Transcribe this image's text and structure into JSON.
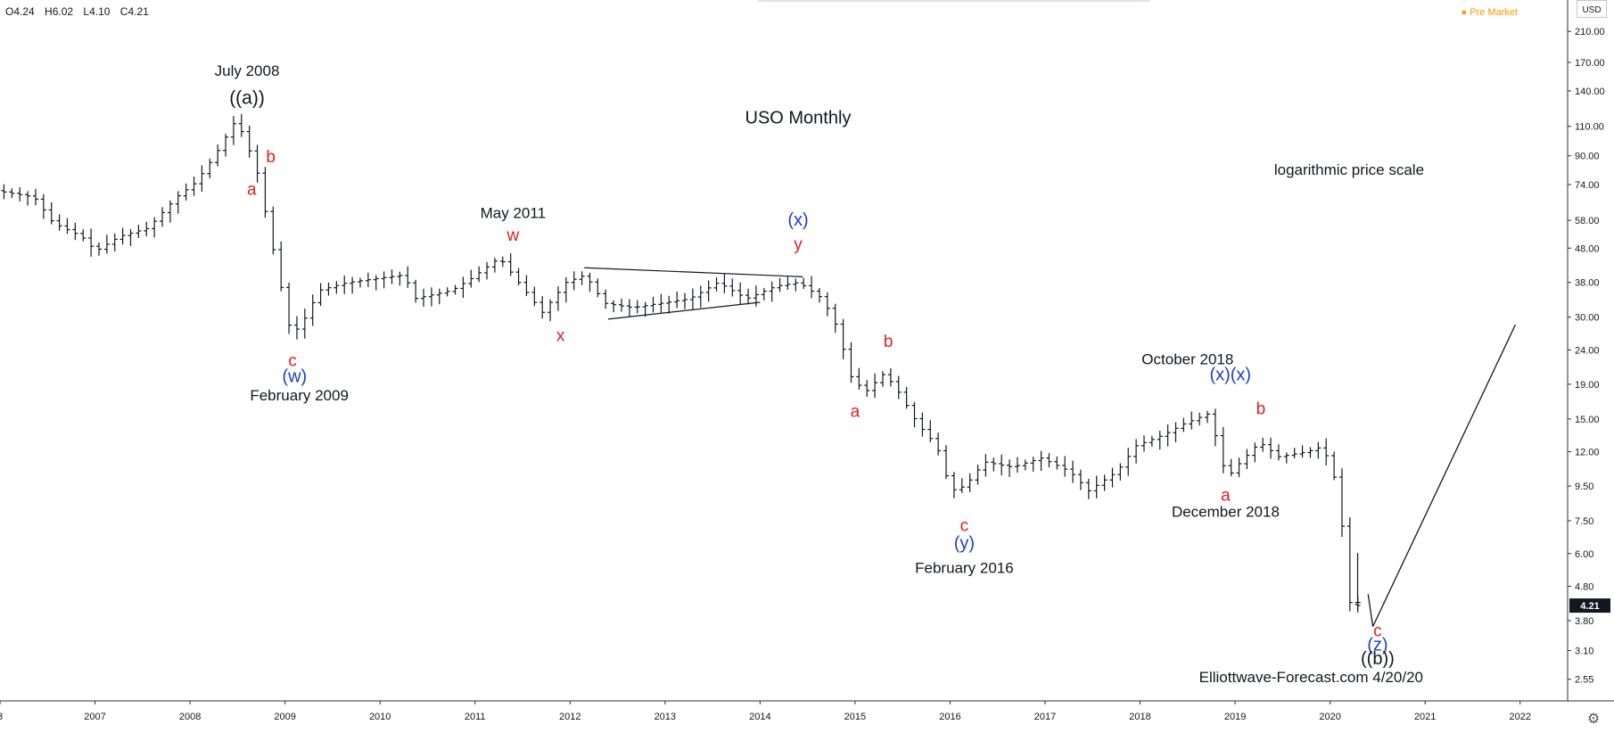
{
  "header": {
    "open": "O4.24",
    "high": "H6.02",
    "low": "L4.10",
    "close": "C4.21",
    "pre_market": "Pre Market",
    "currency": "USD",
    "last_price": "4.21"
  },
  "chart_data": {
    "type": "ohlc",
    "title": "USO Monthly",
    "yscale": "log",
    "ylim": [
      2.2,
      260
    ],
    "xlim": [
      2006.0,
      2022.5
    ],
    "x_ticks": [
      "3",
      "2007",
      "2008",
      "2009",
      "2010",
      "2011",
      "2012",
      "2013",
      "2014",
      "2015",
      "2016",
      "2017",
      "2018",
      "2019",
      "2020",
      "2021",
      "2022"
    ],
    "x_tick_values": [
      2006.0,
      2007.0,
      2008.0,
      2009.0,
      2010.0,
      2011.0,
      2012.0,
      2013.0,
      2014.0,
      2015.0,
      2016.0,
      2017.0,
      2018.0,
      2019.0,
      2020.0,
      2021.0,
      2022.0
    ],
    "y_ticks": [
      "2.55",
      "3.10",
      "3.80",
      "4.80",
      "6.00",
      "7.50",
      "9.50",
      "12.00",
      "15.00",
      "19.00",
      "24.00",
      "30.00",
      "38.00",
      "48.00",
      "58.00",
      "74.00",
      "90.00",
      "110.00",
      "140.00",
      "170.00",
      "210.00"
    ],
    "y_tick_values": [
      2.55,
      3.1,
      3.8,
      4.8,
      6.0,
      7.5,
      9.5,
      12.0,
      15.0,
      19.0,
      24.0,
      30.0,
      38.0,
      48.0,
      58.0,
      74.0,
      90.0,
      110.0,
      140.0,
      170.0,
      210.0
    ],
    "grid": false,
    "anchors": [
      [
        2006.0,
        71
      ],
      [
        2006.4,
        68
      ],
      [
        2006.6,
        57
      ],
      [
        2006.9,
        52
      ],
      [
        2007.05,
        47
      ],
      [
        2007.3,
        52
      ],
      [
        2007.6,
        55
      ],
      [
        2007.9,
        68
      ],
      [
        2008.1,
        75
      ],
      [
        2008.3,
        90
      ],
      [
        2008.5,
        112
      ],
      [
        2008.6,
        105
      ],
      [
        2008.75,
        80
      ],
      [
        2008.9,
        50
      ],
      [
        2009.1,
        27
      ],
      [
        2009.2,
        28
      ],
      [
        2009.4,
        36
      ],
      [
        2009.7,
        38
      ],
      [
        2010.0,
        39
      ],
      [
        2010.3,
        40
      ],
      [
        2010.4,
        34
      ],
      [
        2010.8,
        36
      ],
      [
        2011.0,
        39
      ],
      [
        2011.3,
        45
      ],
      [
        2011.5,
        38
      ],
      [
        2011.75,
        31
      ],
      [
        2012.0,
        38
      ],
      [
        2012.2,
        40
      ],
      [
        2012.4,
        33
      ],
      [
        2012.7,
        32
      ],
      [
        2013.0,
        33
      ],
      [
        2013.3,
        34
      ],
      [
        2013.6,
        38
      ],
      [
        2013.9,
        34
      ],
      [
        2014.2,
        37
      ],
      [
        2014.45,
        38
      ],
      [
        2014.7,
        34
      ],
      [
        2014.85,
        28
      ],
      [
        2015.0,
        20
      ],
      [
        2015.15,
        18
      ],
      [
        2015.35,
        20.5
      ],
      [
        2015.5,
        18
      ],
      [
        2015.7,
        14.5
      ],
      [
        2015.9,
        12.5
      ],
      [
        2016.05,
        9.2
      ],
      [
        2016.2,
        9.5
      ],
      [
        2016.4,
        11.2
      ],
      [
        2016.7,
        10.8
      ],
      [
        2017.0,
        11.5
      ],
      [
        2017.3,
        10.5
      ],
      [
        2017.5,
        9.2
      ],
      [
        2017.8,
        10.5
      ],
      [
        2018.0,
        12.5
      ],
      [
        2018.3,
        13.5
      ],
      [
        2018.5,
        14.5
      ],
      [
        2018.75,
        15.5
      ],
      [
        2018.85,
        13
      ],
      [
        2018.95,
        10
      ],
      [
        2019.1,
        11.2
      ],
      [
        2019.3,
        12.8
      ],
      [
        2019.5,
        11.6
      ],
      [
        2019.8,
        12.0
      ],
      [
        2019.95,
        12.4
      ],
      [
        2020.05,
        11.0
      ],
      [
        2020.15,
        8.5
      ],
      [
        2020.22,
        4.3
      ],
      [
        2020.29,
        4.3
      ]
    ],
    "projection": [
      [
        2020.45,
        3.65
      ],
      [
        2021.95,
        28.5
      ]
    ],
    "triangle": [
      [
        [
          2012.15,
          42
        ],
        [
          2014.45,
          39.5
        ]
      ],
      [
        [
          2012.4,
          29.6
        ],
        [
          2014.0,
          33.2
        ]
      ]
    ],
    "last_bar": {
      "x": 2020.29,
      "o": 4.24,
      "h": 6.02,
      "l": 4.1,
      "c": 4.21
    },
    "annotations": [
      {
        "text": "July 2008",
        "x": 2008.6,
        "y": 155,
        "color": "#131722",
        "size": 17
      },
      {
        "text": "((a))",
        "x": 2008.6,
        "y": 128,
        "color": "#131722",
        "size": 21
      },
      {
        "text": "b",
        "x": 2008.85,
        "y": 86,
        "color": "#e51e1e",
        "size": 19
      },
      {
        "text": "a",
        "x": 2008.65,
        "y": 69,
        "color": "#e51e1e",
        "size": 19
      },
      {
        "text": "c",
        "x": 2009.08,
        "y": 21.5,
        "color": "#e51e1e",
        "size": 19
      },
      {
        "text": "(w)",
        "x": 2009.1,
        "y": 19.3,
        "color": "#1c3fc8",
        "size": 20
      },
      {
        "text": "February 2009",
        "x": 2009.15,
        "y": 17.0,
        "color": "#131722",
        "size": 17
      },
      {
        "text": "USO Monthly",
        "x": 2014.4,
        "y": 112,
        "color": "#131722",
        "size": 20
      },
      {
        "text": "May 2011",
        "x": 2011.4,
        "y": 59,
        "color": "#131722",
        "size": 17
      },
      {
        "text": "w",
        "x": 2011.4,
        "y": 50.5,
        "color": "#e51e1e",
        "size": 19
      },
      {
        "text": "x",
        "x": 2011.9,
        "y": 25.5,
        "color": "#e51e1e",
        "size": 19
      },
      {
        "text": "(x)",
        "x": 2014.4,
        "y": 56,
        "color": "#1c3fc8",
        "size": 20
      },
      {
        "text": "y",
        "x": 2014.4,
        "y": 47.5,
        "color": "#e51e1e",
        "size": 19
      },
      {
        "text": "logarithmic price scale",
        "x": 2020.2,
        "y": 79,
        "color": "#131722",
        "size": 17
      },
      {
        "text": "b",
        "x": 2015.35,
        "y": 24.5,
        "color": "#e51e1e",
        "size": 19
      },
      {
        "text": "a",
        "x": 2015.0,
        "y": 15.2,
        "color": "#e51e1e",
        "size": 19
      },
      {
        "text": "c",
        "x": 2016.15,
        "y": 7.0,
        "color": "#e51e1e",
        "size": 19
      },
      {
        "text": "(y)",
        "x": 2016.15,
        "y": 6.2,
        "color": "#1c3fc8",
        "size": 20
      },
      {
        "text": "February 2016",
        "x": 2016.15,
        "y": 5.25,
        "color": "#131722",
        "size": 17
      },
      {
        "text": "October 2018",
        "x": 2018.5,
        "y": 21.8,
        "color": "#131722",
        "size": 17
      },
      {
        "text": "(x)(x)",
        "x": 2018.95,
        "y": 19.5,
        "color": "#1c3fc8",
        "size": 20
      },
      {
        "text": "b",
        "x": 2019.27,
        "y": 15.5,
        "color": "#e51e1e",
        "size": 19
      },
      {
        "text": "a",
        "x": 2018.9,
        "y": 8.6,
        "color": "#e51e1e",
        "size": 19
      },
      {
        "text": "December 2018",
        "x": 2018.9,
        "y": 7.7,
        "color": "#131722",
        "size": 17
      },
      {
        "text": "c",
        "x": 2020.5,
        "y": 3.42,
        "color": "#e51e1e",
        "size": 19
      },
      {
        "text": "(z)",
        "x": 2020.5,
        "y": 3.1,
        "color": "#1c3fc8",
        "size": 20
      },
      {
        "text": "((b))",
        "x": 2020.5,
        "y": 2.82,
        "color": "#131722",
        "size": 20
      },
      {
        "text": "Elliottwave-Forecast.com 4/20/20",
        "x": 2019.8,
        "y": 2.5,
        "color": "#131722",
        "size": 17
      }
    ]
  }
}
